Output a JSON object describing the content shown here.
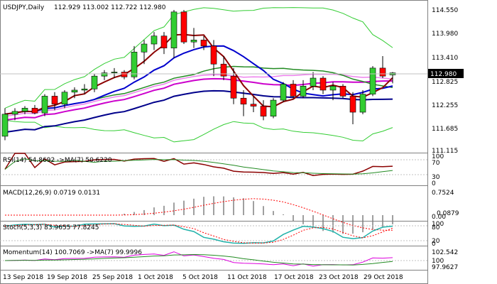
{
  "header": {
    "symbol_tf": "USDJPY,Daily",
    "ohlc": "112.929 113.002 112.722 112.980"
  },
  "price_scale": [
    "114.550",
    "113.980",
    "113.410",
    "112.825",
    "112.255",
    "111.685",
    "111.115"
  ],
  "current_price": "112.980",
  "indicators": {
    "rsi": {
      "title": "RSI(14) 54.8692 ->MA(7) 50.6220",
      "scale": [
        "100",
        "70",
        "30",
        "0"
      ]
    },
    "macd": {
      "title": "MACD(12,26,9) 0.0719 0.0131",
      "scale": [
        "0.7524",
        "0.0879",
        "0.00"
      ]
    },
    "stoch": {
      "title": "Stoch(5,3,3) 83.9655 77.8245",
      "scale": [
        "100",
        "80",
        "20",
        "0"
      ]
    },
    "momentum": {
      "title": "Momentum(14) 100.7069 ->MA(7) 99.9996",
      "scale": [
        "102.542",
        "100",
        "97.9627"
      ]
    }
  },
  "date_axis": [
    "13 Sep 2018",
    "19 Sep 2018",
    "25 Sep 2018",
    "1 Oct 2018",
    "5 Oct 2018",
    "11 Oct 2018",
    "17 Oct 2018",
    "23 Oct 2018",
    "29 Oct 2018"
  ],
  "colors": {
    "bull": "#32cd32",
    "bear": "#ff0000",
    "ma_fast": "#8b0000",
    "ma_mid": "#228b22",
    "ma_slow": "#0000cd",
    "ma_pink": "#ee82ee",
    "ma_magenta": "#cc00cc",
    "ma_long": "#00008b",
    "bollinger": "#32cd32"
  },
  "chart_data": {
    "type": "candlestick",
    "candles": [
      {
        "o": 111.4,
        "h": 112.1,
        "l": 111.3,
        "c": 111.95
      },
      {
        "o": 111.95,
        "h": 112.1,
        "l": 111.8,
        "c": 112.02
      },
      {
        "o": 112.02,
        "h": 112.15,
        "l": 111.95,
        "c": 112.1
      },
      {
        "o": 112.1,
        "h": 112.18,
        "l": 111.95,
        "c": 111.98
      },
      {
        "o": 111.98,
        "h": 112.45,
        "l": 111.9,
        "c": 112.4
      },
      {
        "o": 112.4,
        "h": 112.5,
        "l": 112.05,
        "c": 112.2
      },
      {
        "o": 112.2,
        "h": 112.55,
        "l": 112.1,
        "c": 112.5
      },
      {
        "o": 112.5,
        "h": 112.62,
        "l": 112.35,
        "c": 112.55
      },
      {
        "o": 112.55,
        "h": 112.7,
        "l": 112.45,
        "c": 112.58
      },
      {
        "o": 112.58,
        "h": 112.95,
        "l": 112.5,
        "c": 112.9
      },
      {
        "o": 112.9,
        "h": 113.05,
        "l": 112.8,
        "c": 112.98
      },
      {
        "o": 112.98,
        "h": 113.1,
        "l": 112.85,
        "c": 113.0
      },
      {
        "o": 113.0,
        "h": 113.05,
        "l": 112.82,
        "c": 112.88
      },
      {
        "o": 112.88,
        "h": 113.65,
        "l": 112.82,
        "c": 113.5
      },
      {
        "o": 113.5,
        "h": 113.8,
        "l": 113.2,
        "c": 113.7
      },
      {
        "o": 113.7,
        "h": 114.0,
        "l": 113.55,
        "c": 113.9
      },
      {
        "o": 113.9,
        "h": 114.0,
        "l": 113.45,
        "c": 113.6
      },
      {
        "o": 113.6,
        "h": 114.55,
        "l": 113.35,
        "c": 114.5
      },
      {
        "o": 114.5,
        "h": 114.55,
        "l": 113.7,
        "c": 113.75
      },
      {
        "o": 113.75,
        "h": 114.1,
        "l": 113.6,
        "c": 113.8
      },
      {
        "o": 113.8,
        "h": 113.9,
        "l": 113.55,
        "c": 113.65
      },
      {
        "o": 113.65,
        "h": 113.8,
        "l": 112.9,
        "c": 113.2
      },
      {
        "o": 113.2,
        "h": 113.4,
        "l": 112.8,
        "c": 112.9
      },
      {
        "o": 112.9,
        "h": 113.1,
        "l": 112.2,
        "c": 112.35
      },
      {
        "o": 112.35,
        "h": 112.55,
        "l": 111.9,
        "c": 112.2
      },
      {
        "o": 112.2,
        "h": 112.4,
        "l": 112.0,
        "c": 112.15
      },
      {
        "o": 112.15,
        "h": 112.3,
        "l": 111.8,
        "c": 111.9
      },
      {
        "o": 111.9,
        "h": 112.35,
        "l": 111.85,
        "c": 112.3
      },
      {
        "o": 112.3,
        "h": 112.75,
        "l": 112.25,
        "c": 112.7
      },
      {
        "o": 112.7,
        "h": 112.8,
        "l": 112.35,
        "c": 112.4
      },
      {
        "o": 112.4,
        "h": 112.8,
        "l": 112.35,
        "c": 112.65
      },
      {
        "o": 112.65,
        "h": 113.0,
        "l": 112.55,
        "c": 112.85
      },
      {
        "o": 112.85,
        "h": 112.9,
        "l": 112.45,
        "c": 112.55
      },
      {
        "o": 112.55,
        "h": 112.75,
        "l": 112.3,
        "c": 112.65
      },
      {
        "o": 112.65,
        "h": 112.7,
        "l": 112.35,
        "c": 112.4
      },
      {
        "o": 112.4,
        "h": 112.5,
        "l": 111.7,
        "c": 112.0
      },
      {
        "o": 112.0,
        "h": 112.55,
        "l": 111.95,
        "c": 112.45
      },
      {
        "o": 112.45,
        "h": 113.15,
        "l": 112.4,
        "c": 113.1
      },
      {
        "o": 113.1,
        "h": 113.4,
        "l": 112.85,
        "c": 112.9
      },
      {
        "o": 112.93,
        "h": 113.0,
        "l": 112.72,
        "c": 112.98
      }
    ],
    "ylim": [
      111.115,
      114.55
    ]
  }
}
